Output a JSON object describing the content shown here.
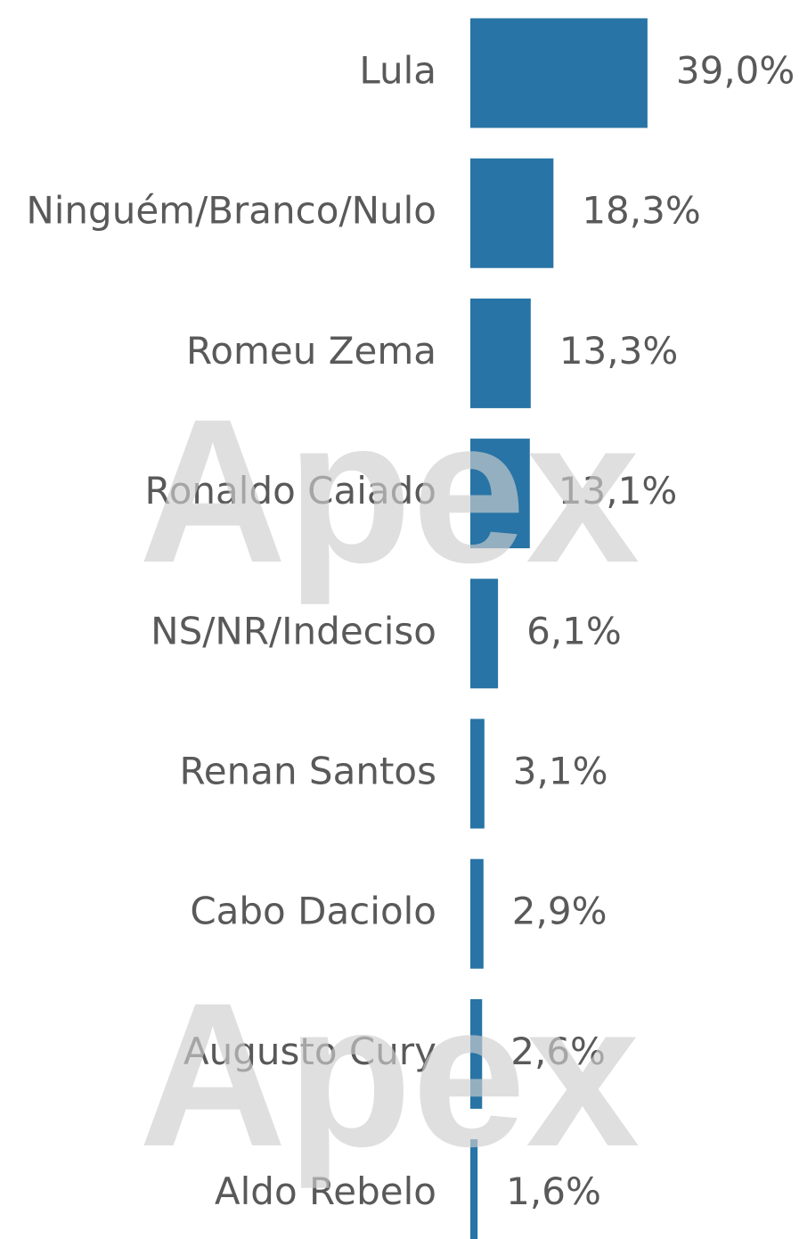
{
  "chart_data": {
    "type": "bar",
    "orientation": "horizontal",
    "categories": [
      "Lula",
      "Ninguém/Branco/Nulo",
      "Romeu Zema",
      "Ronaldo Caiado",
      "NS/NR/Indeciso",
      "Renan Santos",
      "Cabo Daciolo",
      "Augusto Cury",
      "Aldo Rebelo"
    ],
    "values": [
      39.0,
      18.3,
      13.3,
      13.1,
      6.1,
      3.1,
      2.9,
      2.6,
      1.6
    ],
    "value_labels": [
      "39,0%",
      "18,3%",
      "13,3%",
      "13,1%",
      "6,1%",
      "3,1%",
      "2,9%",
      "2,6%",
      "1,6%"
    ],
    "color": "#2874a6",
    "watermark": "Apex"
  }
}
